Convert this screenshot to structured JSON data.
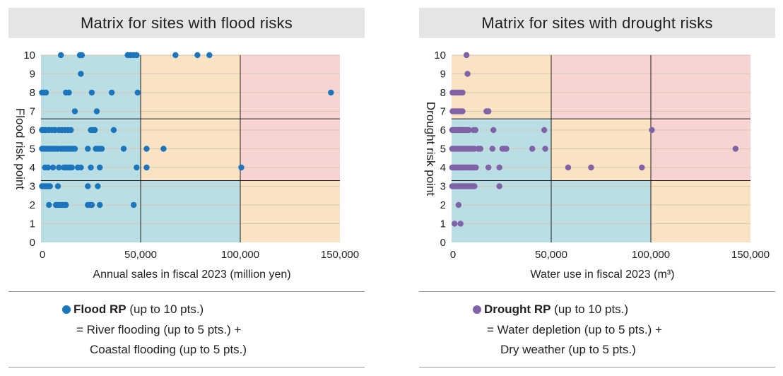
{
  "colors": {
    "flood_point": "#1b75bc",
    "drought_point": "#8062a8",
    "low_zone": "#b9dfe5",
    "mid_zone": "#fae3c3",
    "high_zone": "#f7d3d1",
    "grid": "#d9c7b4",
    "divider": "#231f20"
  },
  "chart_data": [
    {
      "type": "scatter",
      "title": "Matrix for sites with flood risks",
      "xlabel": "Annual sales in fiscal 2023 (million yen)",
      "ylabel": "Flood risk point",
      "xlim": [
        0,
        150000
      ],
      "ylim": [
        0,
        10
      ],
      "x_ticks": [
        "0",
        "50,000",
        "100,000",
        "150,000"
      ],
      "y_ticks": [
        "0",
        "1",
        "2",
        "3",
        "4",
        "5",
        "6",
        "7",
        "8",
        "9",
        "10"
      ],
      "x_dividers": [
        50000,
        100000
      ],
      "y_dividers": [
        3.3,
        6.6
      ],
      "zones": [
        [
          "low",
          "mid",
          "high"
        ],
        [
          "low",
          "mid",
          "high"
        ],
        [
          "low",
          "low",
          "mid"
        ]
      ],
      "legend": {
        "label": "Flood RP",
        "suffix": " (up to 10 pts.)",
        "line2": "= River flooding (up to 5 pts.) +",
        "line3": "Coastal flooding (up to 5 pts.)"
      },
      "series": [
        {
          "name": "Flood RP",
          "points": [
            [
              10000,
              10
            ],
            [
              19500,
              10
            ],
            [
              20500,
              10
            ],
            [
              43500,
              10
            ],
            [
              45000,
              10
            ],
            [
              46500,
              10
            ],
            [
              48000,
              10
            ],
            [
              67500,
              10
            ],
            [
              78500,
              10
            ],
            [
              84500,
              10
            ],
            [
              20000,
              9
            ],
            [
              500,
              8
            ],
            [
              1500,
              8
            ],
            [
              2500,
              8
            ],
            [
              12500,
              8
            ],
            [
              14000,
              8
            ],
            [
              25500,
              8
            ],
            [
              35500,
              8
            ],
            [
              48500,
              8
            ],
            [
              145500,
              8
            ],
            [
              17000,
              7
            ],
            [
              28000,
              7
            ],
            [
              500,
              6
            ],
            [
              1500,
              6
            ],
            [
              2500,
              6
            ],
            [
              4000,
              6
            ],
            [
              5500,
              6
            ],
            [
              7000,
              6
            ],
            [
              9000,
              6
            ],
            [
              10500,
              6
            ],
            [
              12000,
              6
            ],
            [
              13500,
              6
            ],
            [
              15000,
              6
            ],
            [
              25000,
              6
            ],
            [
              26000,
              6
            ],
            [
              27000,
              6
            ],
            [
              36500,
              6
            ],
            [
              500,
              5
            ],
            [
              1500,
              5
            ],
            [
              2500,
              5
            ],
            [
              3500,
              5
            ],
            [
              4500,
              5
            ],
            [
              5500,
              5
            ],
            [
              6500,
              5
            ],
            [
              7500,
              5
            ],
            [
              8500,
              5
            ],
            [
              10000,
              5
            ],
            [
              11000,
              5
            ],
            [
              12000,
              5
            ],
            [
              13000,
              5
            ],
            [
              14000,
              5
            ],
            [
              15000,
              5
            ],
            [
              16000,
              5
            ],
            [
              17000,
              5
            ],
            [
              23500,
              5
            ],
            [
              27500,
              5
            ],
            [
              28500,
              5
            ],
            [
              29500,
              5
            ],
            [
              30500,
              5
            ],
            [
              41500,
              5
            ],
            [
              53000,
              5
            ],
            [
              61500,
              5
            ],
            [
              2000,
              4
            ],
            [
              3500,
              4
            ],
            [
              6000,
              4
            ],
            [
              9000,
              4
            ],
            [
              11500,
              4
            ],
            [
              12500,
              4
            ],
            [
              13500,
              4
            ],
            [
              14500,
              4
            ],
            [
              15500,
              4
            ],
            [
              18500,
              4
            ],
            [
              20000,
              4
            ],
            [
              25000,
              4
            ],
            [
              29500,
              4
            ],
            [
              48000,
              4
            ],
            [
              53000,
              4
            ],
            [
              100500,
              4
            ],
            [
              500,
              3
            ],
            [
              1500,
              3
            ],
            [
              2500,
              3
            ],
            [
              3500,
              3
            ],
            [
              4500,
              3
            ],
            [
              8500,
              3
            ],
            [
              23500,
              3
            ],
            [
              28500,
              3
            ],
            [
              4000,
              2
            ],
            [
              7500,
              2
            ],
            [
              8500,
              2
            ],
            [
              9500,
              2
            ],
            [
              10500,
              2
            ],
            [
              11500,
              2
            ],
            [
              12500,
              2
            ],
            [
              23500,
              2
            ],
            [
              24500,
              2
            ],
            [
              25500,
              2
            ],
            [
              29500,
              2
            ],
            [
              46500,
              2
            ]
          ]
        }
      ]
    },
    {
      "type": "scatter",
      "title": "Matrix for sites with drought risks",
      "xlabel": "Water use in fiscal 2023 (m³)",
      "ylabel": "Drought risk point",
      "xlim": [
        0,
        150000
      ],
      "ylim": [
        0,
        10
      ],
      "x_ticks": [
        "0",
        "50,000",
        "100,000",
        "150,000"
      ],
      "y_ticks": [
        "0",
        "1",
        "2",
        "3",
        "4",
        "5",
        "6",
        "7",
        "8",
        "9",
        "10"
      ],
      "x_dividers": [
        50000,
        100000
      ],
      "y_dividers": [
        3.3,
        6.6
      ],
      "zones": [
        [
          "mid",
          "high",
          "high"
        ],
        [
          "low",
          "mid",
          "high"
        ],
        [
          "low",
          "low",
          "mid"
        ]
      ],
      "legend": {
        "label": "Drought RP",
        "suffix": " (up to 10 pts.)",
        "line2": "= Water depletion (up to 5 pts.) +",
        "line3": "Dry weather (up to 5 pts.)"
      },
      "series": [
        {
          "name": "Drought RP",
          "points": [
            [
              7500,
              10
            ],
            [
              8000,
              9
            ],
            [
              500,
              8
            ],
            [
              1500,
              8
            ],
            [
              2500,
              8
            ],
            [
              3500,
              8
            ],
            [
              4500,
              8
            ],
            [
              5500,
              8
            ],
            [
              500,
              7
            ],
            [
              1500,
              7
            ],
            [
              2500,
              7
            ],
            [
              3500,
              7
            ],
            [
              4500,
              7
            ],
            [
              5500,
              7
            ],
            [
              17500,
              7
            ],
            [
              18500,
              7
            ],
            [
              300,
              6
            ],
            [
              1000,
              6
            ],
            [
              1700,
              6
            ],
            [
              2400,
              6
            ],
            [
              3100,
              6
            ],
            [
              3800,
              6
            ],
            [
              4500,
              6
            ],
            [
              5200,
              6
            ],
            [
              5900,
              6
            ],
            [
              6600,
              6
            ],
            [
              7300,
              6
            ],
            [
              8000,
              6
            ],
            [
              8700,
              6
            ],
            [
              11000,
              6
            ],
            [
              12000,
              6
            ],
            [
              21000,
              6
            ],
            [
              46500,
              6
            ],
            [
              100500,
              6
            ],
            [
              300,
              5
            ],
            [
              1000,
              5
            ],
            [
              1700,
              5
            ],
            [
              2400,
              5
            ],
            [
              3100,
              5
            ],
            [
              3800,
              5
            ],
            [
              4500,
              5
            ],
            [
              5200,
              5
            ],
            [
              5900,
              5
            ],
            [
              6600,
              5
            ],
            [
              7300,
              5
            ],
            [
              8000,
              5
            ],
            [
              8700,
              5
            ],
            [
              9400,
              5
            ],
            [
              10100,
              5
            ],
            [
              10800,
              5
            ],
            [
              11500,
              5
            ],
            [
              13500,
              5
            ],
            [
              14500,
              5
            ],
            [
              20500,
              5
            ],
            [
              25500,
              5
            ],
            [
              26500,
              5
            ],
            [
              27500,
              5
            ],
            [
              40500,
              5
            ],
            [
              47000,
              5
            ],
            [
              142500,
              5
            ],
            [
              300,
              4
            ],
            [
              1000,
              4
            ],
            [
              1700,
              4
            ],
            [
              2400,
              4
            ],
            [
              3100,
              4
            ],
            [
              3800,
              4
            ],
            [
              4500,
              4
            ],
            [
              5200,
              4
            ],
            [
              5900,
              4
            ],
            [
              6600,
              4
            ],
            [
              7300,
              4
            ],
            [
              8000,
              4
            ],
            [
              8700,
              4
            ],
            [
              9400,
              4
            ],
            [
              10100,
              4
            ],
            [
              10800,
              4
            ],
            [
              11500,
              4
            ],
            [
              12200,
              4
            ],
            [
              18500,
              4
            ],
            [
              24000,
              4
            ],
            [
              58500,
              4
            ],
            [
              70000,
              4
            ],
            [
              95500,
              4
            ],
            [
              300,
              3
            ],
            [
              1000,
              3
            ],
            [
              1700,
              3
            ],
            [
              2400,
              3
            ],
            [
              3100,
              3
            ],
            [
              3800,
              3
            ],
            [
              4500,
              3
            ],
            [
              5200,
              3
            ],
            [
              5900,
              3
            ],
            [
              6600,
              3
            ],
            [
              7300,
              3
            ],
            [
              8000,
              3
            ],
            [
              8700,
              3
            ],
            [
              9400,
              3
            ],
            [
              10100,
              3
            ],
            [
              10800,
              3
            ],
            [
              11500,
              3
            ],
            [
              24000,
              3
            ],
            [
              3500,
              2
            ],
            [
              1500,
              1
            ],
            [
              4500,
              1
            ]
          ]
        }
      ]
    }
  ]
}
